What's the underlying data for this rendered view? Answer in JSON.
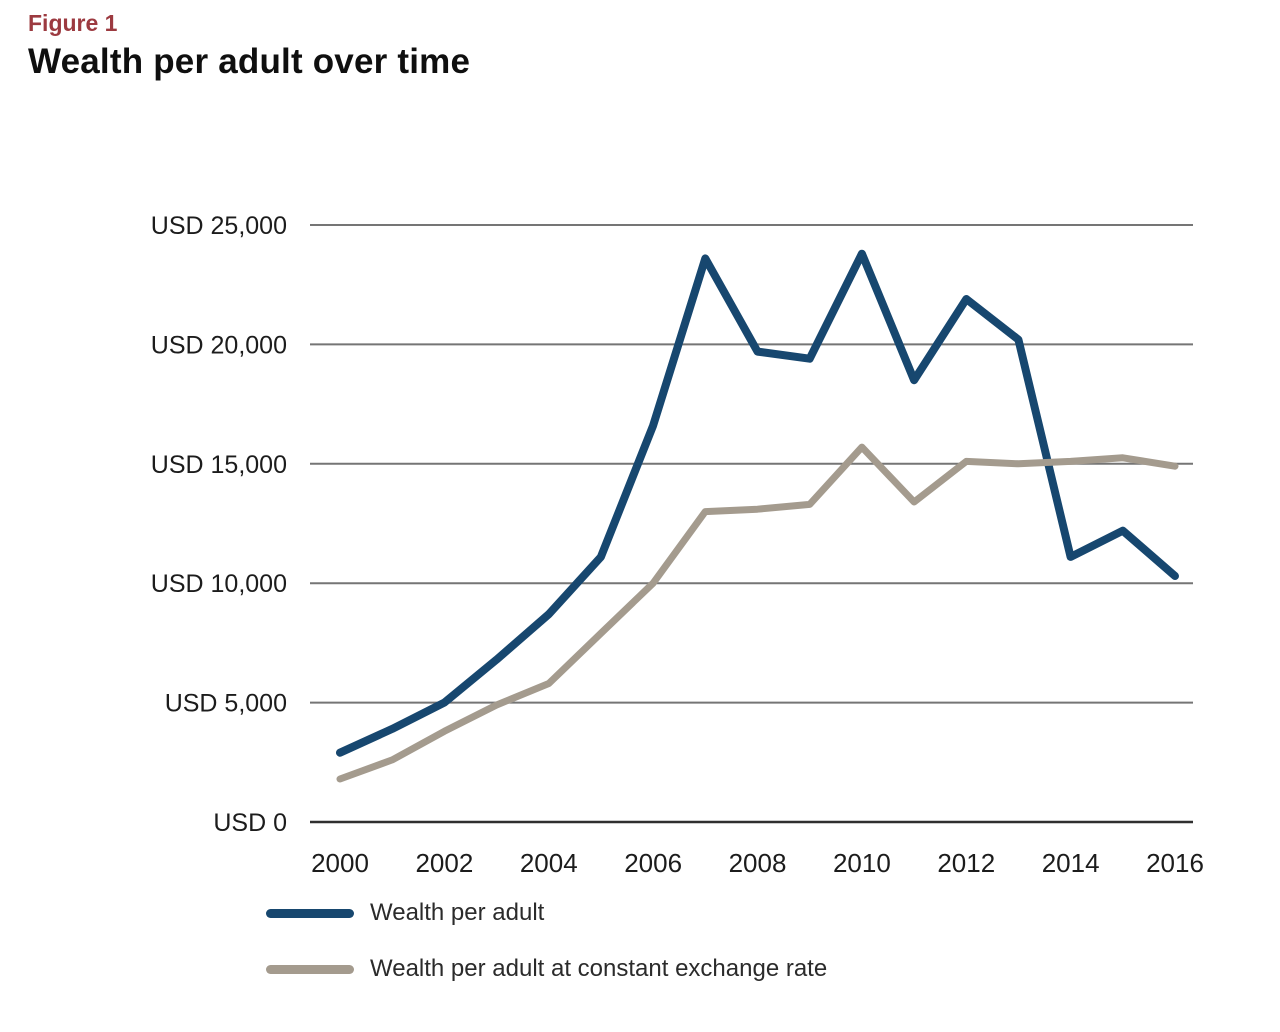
{
  "figure": {
    "label": "Figure 1",
    "title": "Wealth per adult over time"
  },
  "chart_data": {
    "type": "line",
    "x": [
      2000,
      2001,
      2002,
      2003,
      2004,
      2005,
      2006,
      2007,
      2008,
      2009,
      2010,
      2011,
      2012,
      2013,
      2014,
      2015,
      2016
    ],
    "series": [
      {
        "name": "Wealth per adult",
        "color": "#17476f",
        "stroke_width": 8,
        "values": [
          2900,
          3900,
          5000,
          6800,
          8700,
          11100,
          16600,
          23600,
          19700,
          19400,
          23800,
          18500,
          21900,
          20200,
          11100,
          12200,
          10300
        ]
      },
      {
        "name": "Wealth per adult at constant exchange rate",
        "color": "#a49b8e",
        "stroke_width": 7,
        "values": [
          1800,
          2600,
          3800,
          4900,
          5800,
          7900,
          10000,
          13000,
          13100,
          13300,
          15700,
          13400,
          15100,
          15000,
          15100,
          15250,
          14900
        ]
      }
    ],
    "y_ticks": [
      25000,
      20000,
      15000,
      10000,
      5000,
      0
    ],
    "y_tick_labels": [
      "USD 25,000",
      "USD 20,000",
      "USD 15,000",
      "USD 10,000",
      "USD 5,000",
      "USD 0"
    ],
    "x_ticks": [
      2000,
      2002,
      2004,
      2006,
      2008,
      2010,
      2012,
      2014,
      2016
    ],
    "x_tick_labels": [
      "2000",
      "2002",
      "2004",
      "2006",
      "2008",
      "2010",
      "2012",
      "2014",
      "2016"
    ],
    "ylim": [
      0,
      25000
    ],
    "xlim": [
      2000,
      2016
    ],
    "grid": "horizontal",
    "legend_position": "bottom-left"
  },
  "colors": {
    "figure_label": "#9c3a40",
    "title": "#0f0f0f",
    "grid": "#757575",
    "zero_line": "#2f2f2f",
    "tick_text": "#1c1c1c"
  }
}
